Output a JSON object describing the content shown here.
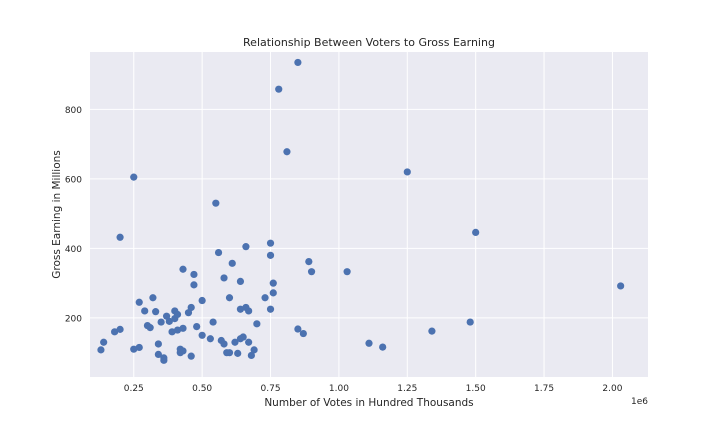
{
  "chart_data": {
    "type": "scatter",
    "title": "Relationship Between Voters to Gross Earning",
    "xlabel": "Number of Votes in Hundred Thousands",
    "ylabel": "Gross Earning in Millions",
    "x_offset_text": "1e6",
    "xlim": [
      0.09,
      2.13
    ],
    "ylim": [
      30,
      965
    ],
    "x_ticks": [
      0.25,
      0.5,
      0.75,
      1.0,
      1.25,
      1.5,
      1.75,
      2.0
    ],
    "x_tick_labels": [
      "0.25",
      "0.50",
      "0.75",
      "1.00",
      "1.25",
      "1.50",
      "1.75",
      "2.00"
    ],
    "y_ticks": [
      200,
      400,
      600,
      800
    ],
    "y_tick_labels": [
      "200",
      "400",
      "600",
      "800"
    ],
    "grid": true,
    "marker_color": "#4c72b0",
    "points": [
      [
        0.13,
        108
      ],
      [
        0.14,
        130
      ],
      [
        0.18,
        160
      ],
      [
        0.2,
        167
      ],
      [
        0.2,
        432
      ],
      [
        0.25,
        110
      ],
      [
        0.25,
        605
      ],
      [
        0.27,
        245
      ],
      [
        0.27,
        115
      ],
      [
        0.29,
        220
      ],
      [
        0.3,
        178
      ],
      [
        0.31,
        172
      ],
      [
        0.32,
        258
      ],
      [
        0.33,
        218
      ],
      [
        0.34,
        95
      ],
      [
        0.34,
        125
      ],
      [
        0.35,
        188
      ],
      [
        0.36,
        85
      ],
      [
        0.36,
        78
      ],
      [
        0.37,
        205
      ],
      [
        0.38,
        190
      ],
      [
        0.39,
        160
      ],
      [
        0.4,
        198
      ],
      [
        0.4,
        220
      ],
      [
        0.41,
        210
      ],
      [
        0.41,
        165
      ],
      [
        0.42,
        100
      ],
      [
        0.42,
        110
      ],
      [
        0.43,
        340
      ],
      [
        0.43,
        105
      ],
      [
        0.43,
        170
      ],
      [
        0.45,
        215
      ],
      [
        0.46,
        90
      ],
      [
        0.46,
        230
      ],
      [
        0.47,
        325
      ],
      [
        0.47,
        295
      ],
      [
        0.48,
        175
      ],
      [
        0.5,
        250
      ],
      [
        0.5,
        150
      ],
      [
        0.53,
        140
      ],
      [
        0.54,
        188
      ],
      [
        0.55,
        530
      ],
      [
        0.56,
        388
      ],
      [
        0.57,
        135
      ],
      [
        0.58,
        315
      ],
      [
        0.58,
        125
      ],
      [
        0.59,
        100
      ],
      [
        0.6,
        258
      ],
      [
        0.6,
        100
      ],
      [
        0.61,
        357
      ],
      [
        0.62,
        130
      ],
      [
        0.63,
        98
      ],
      [
        0.64,
        305
      ],
      [
        0.64,
        225
      ],
      [
        0.64,
        140
      ],
      [
        0.65,
        145
      ],
      [
        0.66,
        405
      ],
      [
        0.66,
        230
      ],
      [
        0.67,
        130
      ],
      [
        0.67,
        220
      ],
      [
        0.68,
        92
      ],
      [
        0.69,
        108
      ],
      [
        0.7,
        183
      ],
      [
        0.73,
        258
      ],
      [
        0.75,
        225
      ],
      [
        0.75,
        415
      ],
      [
        0.75,
        380
      ],
      [
        0.76,
        300
      ],
      [
        0.76,
        272
      ],
      [
        0.78,
        858
      ],
      [
        0.81,
        678
      ],
      [
        0.85,
        935
      ],
      [
        0.85,
        168
      ],
      [
        0.87,
        155
      ],
      [
        0.89,
        362
      ],
      [
        0.9,
        333
      ],
      [
        1.03,
        333
      ],
      [
        1.11,
        127
      ],
      [
        1.16,
        116
      ],
      [
        1.25,
        620
      ],
      [
        1.34,
        162
      ],
      [
        1.48,
        188
      ],
      [
        1.5,
        446
      ],
      [
        2.03,
        292
      ]
    ]
  }
}
